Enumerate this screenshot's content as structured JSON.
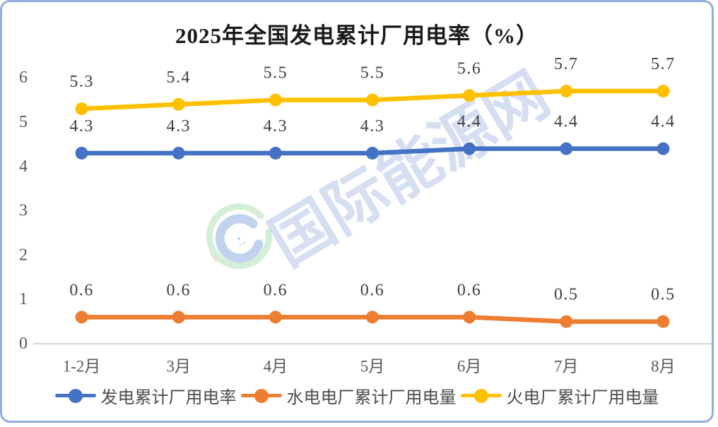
{
  "chart_data": {
    "type": "line",
    "title": "2025年全国发电累计厂用电率（%）",
    "categories": [
      "1-2月",
      "3月",
      "4月",
      "5月",
      "6月",
      "7月",
      "8月"
    ],
    "series": [
      {
        "name": "发电累计厂用电率",
        "color": "#4472C4",
        "values": [
          4.3,
          4.3,
          4.3,
          4.3,
          4.4,
          4.4,
          4.4
        ]
      },
      {
        "name": "水电电厂累计厂用电量",
        "color": "#ED7D31",
        "values": [
          0.6,
          0.6,
          0.6,
          0.6,
          0.6,
          0.5,
          0.5
        ]
      },
      {
        "name": "火电厂累计厂用电量",
        "color": "#FFC000",
        "values": [
          5.3,
          5.4,
          5.5,
          5.5,
          5.6,
          5.7,
          5.7
        ]
      }
    ],
    "ylim": [
      0,
      6
    ],
    "yticks": [
      0,
      1,
      2,
      3,
      4,
      5,
      6
    ],
    "grid": false,
    "data_labels": true,
    "legend_position": "bottom"
  },
  "watermark": {
    "text": "国际能源网"
  },
  "colors": {
    "frame_border": "#96ACDC",
    "axis_line": "#D9D9D9",
    "tick_label": "#595959",
    "data_label": "#404040",
    "legend_label": "#4d4d4d",
    "title": "#1a1a1a",
    "watermark": "#7494D0"
  }
}
